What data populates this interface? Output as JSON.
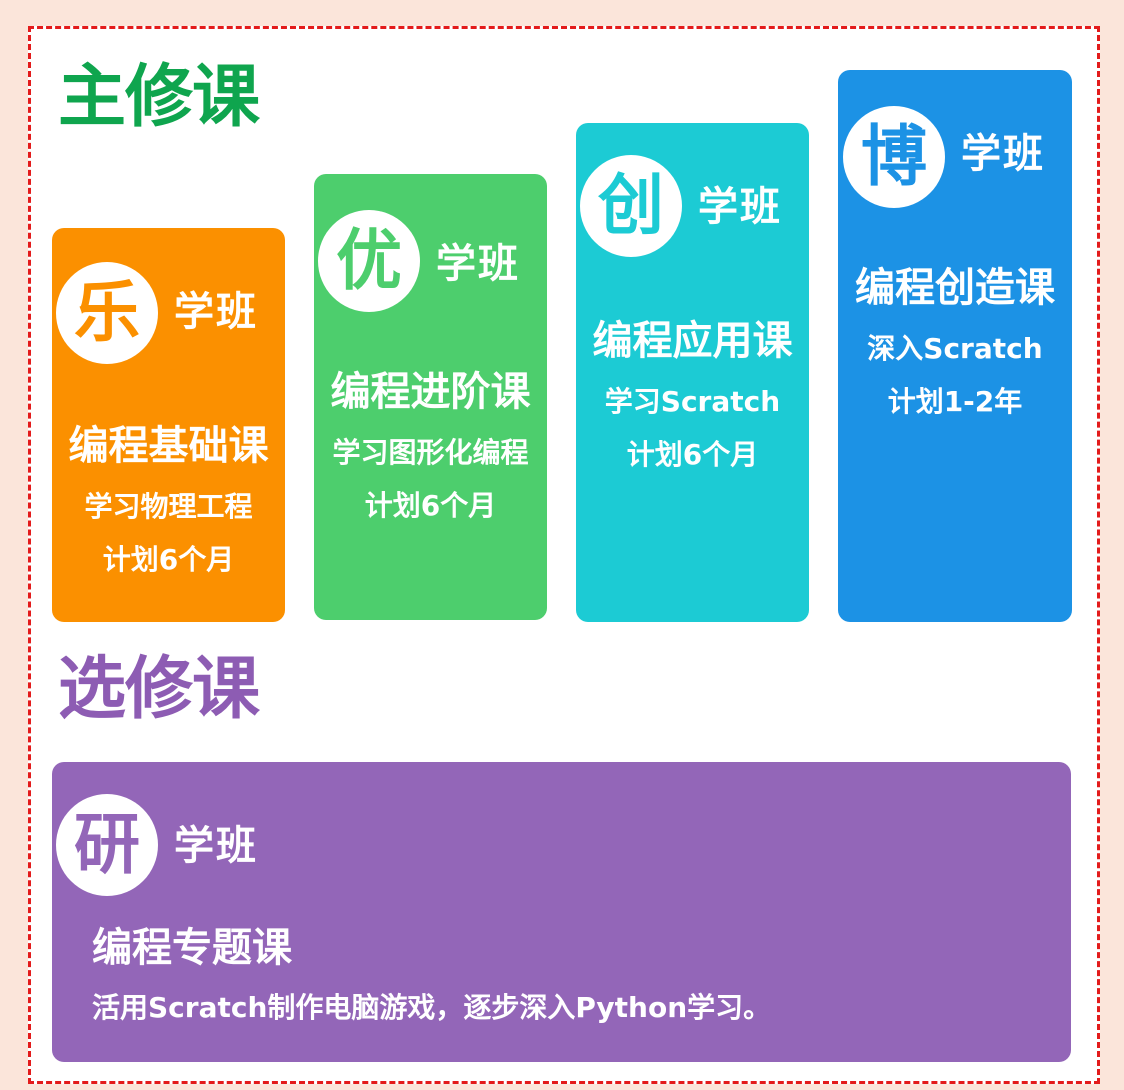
{
  "sections": {
    "required_title": "主修课",
    "elective_title": "选修课"
  },
  "colors": {
    "page_background": "#fbe5da",
    "frame_border": "#e31b1b",
    "required_title": "#0fa54e",
    "elective_title": "#8d5cb3"
  },
  "required_courses": [
    {
      "badge": "乐",
      "class_name": "学班",
      "course_title": "编程基础课",
      "description": "学习物理工程",
      "duration": "计划6个月",
      "color": "#fb9000"
    },
    {
      "badge": "优",
      "class_name": "学班",
      "course_title": "编程进阶课",
      "description": "学习图形化编程",
      "duration": "计划6个月",
      "color": "#4dce6d"
    },
    {
      "badge": "创",
      "class_name": "学班",
      "course_title": "编程应用课",
      "description": "学习Scratch",
      "duration": "计划6个月",
      "color": "#1ccbd4"
    },
    {
      "badge": "博",
      "class_name": "学班",
      "course_title": "编程创造课",
      "description": "深入Scratch",
      "duration": "计划1-2年",
      "color": "#1c92e5"
    }
  ],
  "elective_course": {
    "badge": "研",
    "class_name": "学班",
    "course_title": "编程专题课",
    "description": "活用Scratch制作电脑游戏，逐步深入Python学习。",
    "color": "#9366b8"
  }
}
